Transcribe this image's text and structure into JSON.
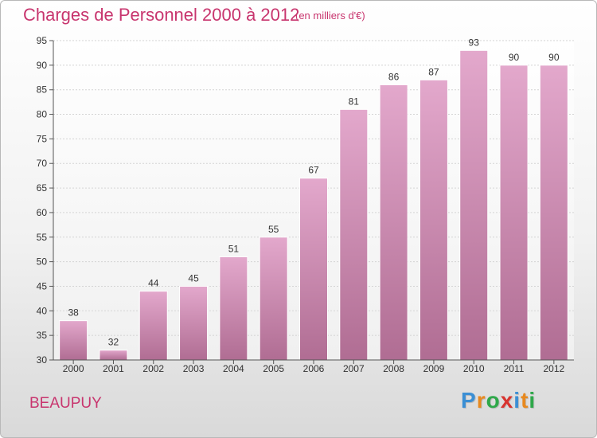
{
  "header": {
    "title": "Charges de Personnel 2000 à 2012",
    "subtitle": "(en milliers d'€)"
  },
  "footer": {
    "commune": "BEAUPUY",
    "brand_letters": [
      "P",
      "r",
      "o",
      "x",
      "i",
      "t",
      "i"
    ]
  },
  "colors": {
    "bar_top": "#e3a8cc",
    "bar_bottom": "#b06d93",
    "title": "#c8356e",
    "brand": [
      "#3b8fd4",
      "#e8891f",
      "#2fa84a",
      "#d8342f",
      "#3b8fd4",
      "#e8891f",
      "#2fa84a"
    ]
  },
  "chart_data": {
    "type": "bar",
    "title": "Charges de Personnel 2000 à 2012",
    "subtitle": "(en milliers d'€)",
    "categories": [
      "2000",
      "2001",
      "2002",
      "2003",
      "2004",
      "2005",
      "2006",
      "2007",
      "2008",
      "2009",
      "2010",
      "2011",
      "2012"
    ],
    "values": [
      38,
      32,
      44,
      45,
      51,
      55,
      67,
      81,
      86,
      87,
      93,
      90,
      90
    ],
    "ylim": [
      30,
      95
    ],
    "yticks": [
      30,
      35,
      40,
      45,
      50,
      55,
      60,
      65,
      70,
      75,
      80,
      85,
      90,
      95
    ],
    "grid": true
  }
}
